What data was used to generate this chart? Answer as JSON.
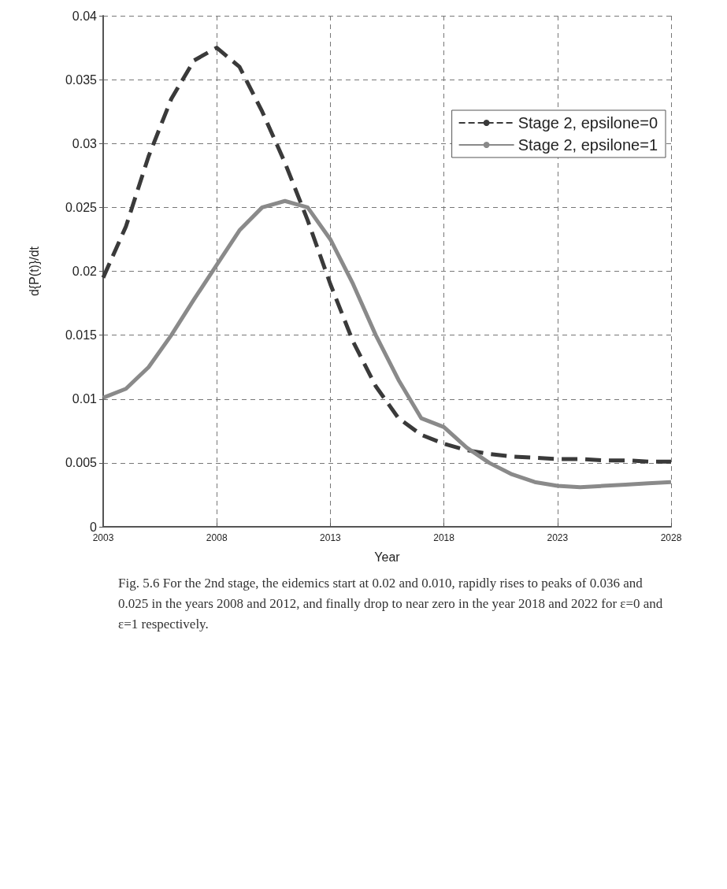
{
  "chart_data": {
    "type": "line",
    "xlabel": "Year",
    "ylabel": "d{P(t)}/dt",
    "x": [
      2003,
      2004,
      2005,
      2006,
      2007,
      2008,
      2009,
      2010,
      2011,
      2012,
      2013,
      2014,
      2015,
      2016,
      2017,
      2018,
      2019,
      2020,
      2021,
      2022,
      2023,
      2024,
      2025,
      2026,
      2027,
      2028
    ],
    "series": [
      {
        "name": "Stage 2, epsilone=0",
        "color": "#3a3a3a",
        "line_style": "dashed",
        "values": [
          0.0195,
          0.0235,
          0.029,
          0.0335,
          0.0365,
          0.0375,
          0.036,
          0.0325,
          0.0285,
          0.024,
          0.019,
          0.0145,
          0.011,
          0.0085,
          0.0072,
          0.0065,
          0.006,
          0.0057,
          0.0055,
          0.0054,
          0.0053,
          0.0053,
          0.0052,
          0.0052,
          0.0051,
          0.0051
        ]
      },
      {
        "name": "Stage 2, epsilone=1",
        "color": "#8a8a8a",
        "line_style": "solid",
        "values": [
          0.0101,
          0.0108,
          0.0125,
          0.015,
          0.0178,
          0.0205,
          0.0232,
          0.025,
          0.0255,
          0.025,
          0.0225,
          0.019,
          0.015,
          0.0115,
          0.0085,
          0.0078,
          0.0062,
          0.005,
          0.0041,
          0.0035,
          0.0032,
          0.0031,
          0.0032,
          0.0033,
          0.0034,
          0.0035
        ]
      }
    ],
    "xlim": [
      2003,
      2028
    ],
    "xticks": [
      2003,
      2008,
      2013,
      2018,
      2023,
      2028
    ],
    "ylim": [
      0,
      0.04
    ],
    "yticks": [
      0,
      0.005,
      0.01,
      0.015,
      0.02,
      0.025,
      0.03,
      0.035,
      0.04
    ],
    "grid": true,
    "legend": "top right",
    "marker": "none",
    "annotations": [
      "Fig. 5.6 For the 2nd stage, the eidemics start at 0.02 and 0.010, rapidly rises to peaks of 0.036 and 0.025 in the years 2008 and 2012, and finally drop to near zero in the year 2018 and 2022 for ε=0 and ε=1 respectively."
    ]
  }
}
